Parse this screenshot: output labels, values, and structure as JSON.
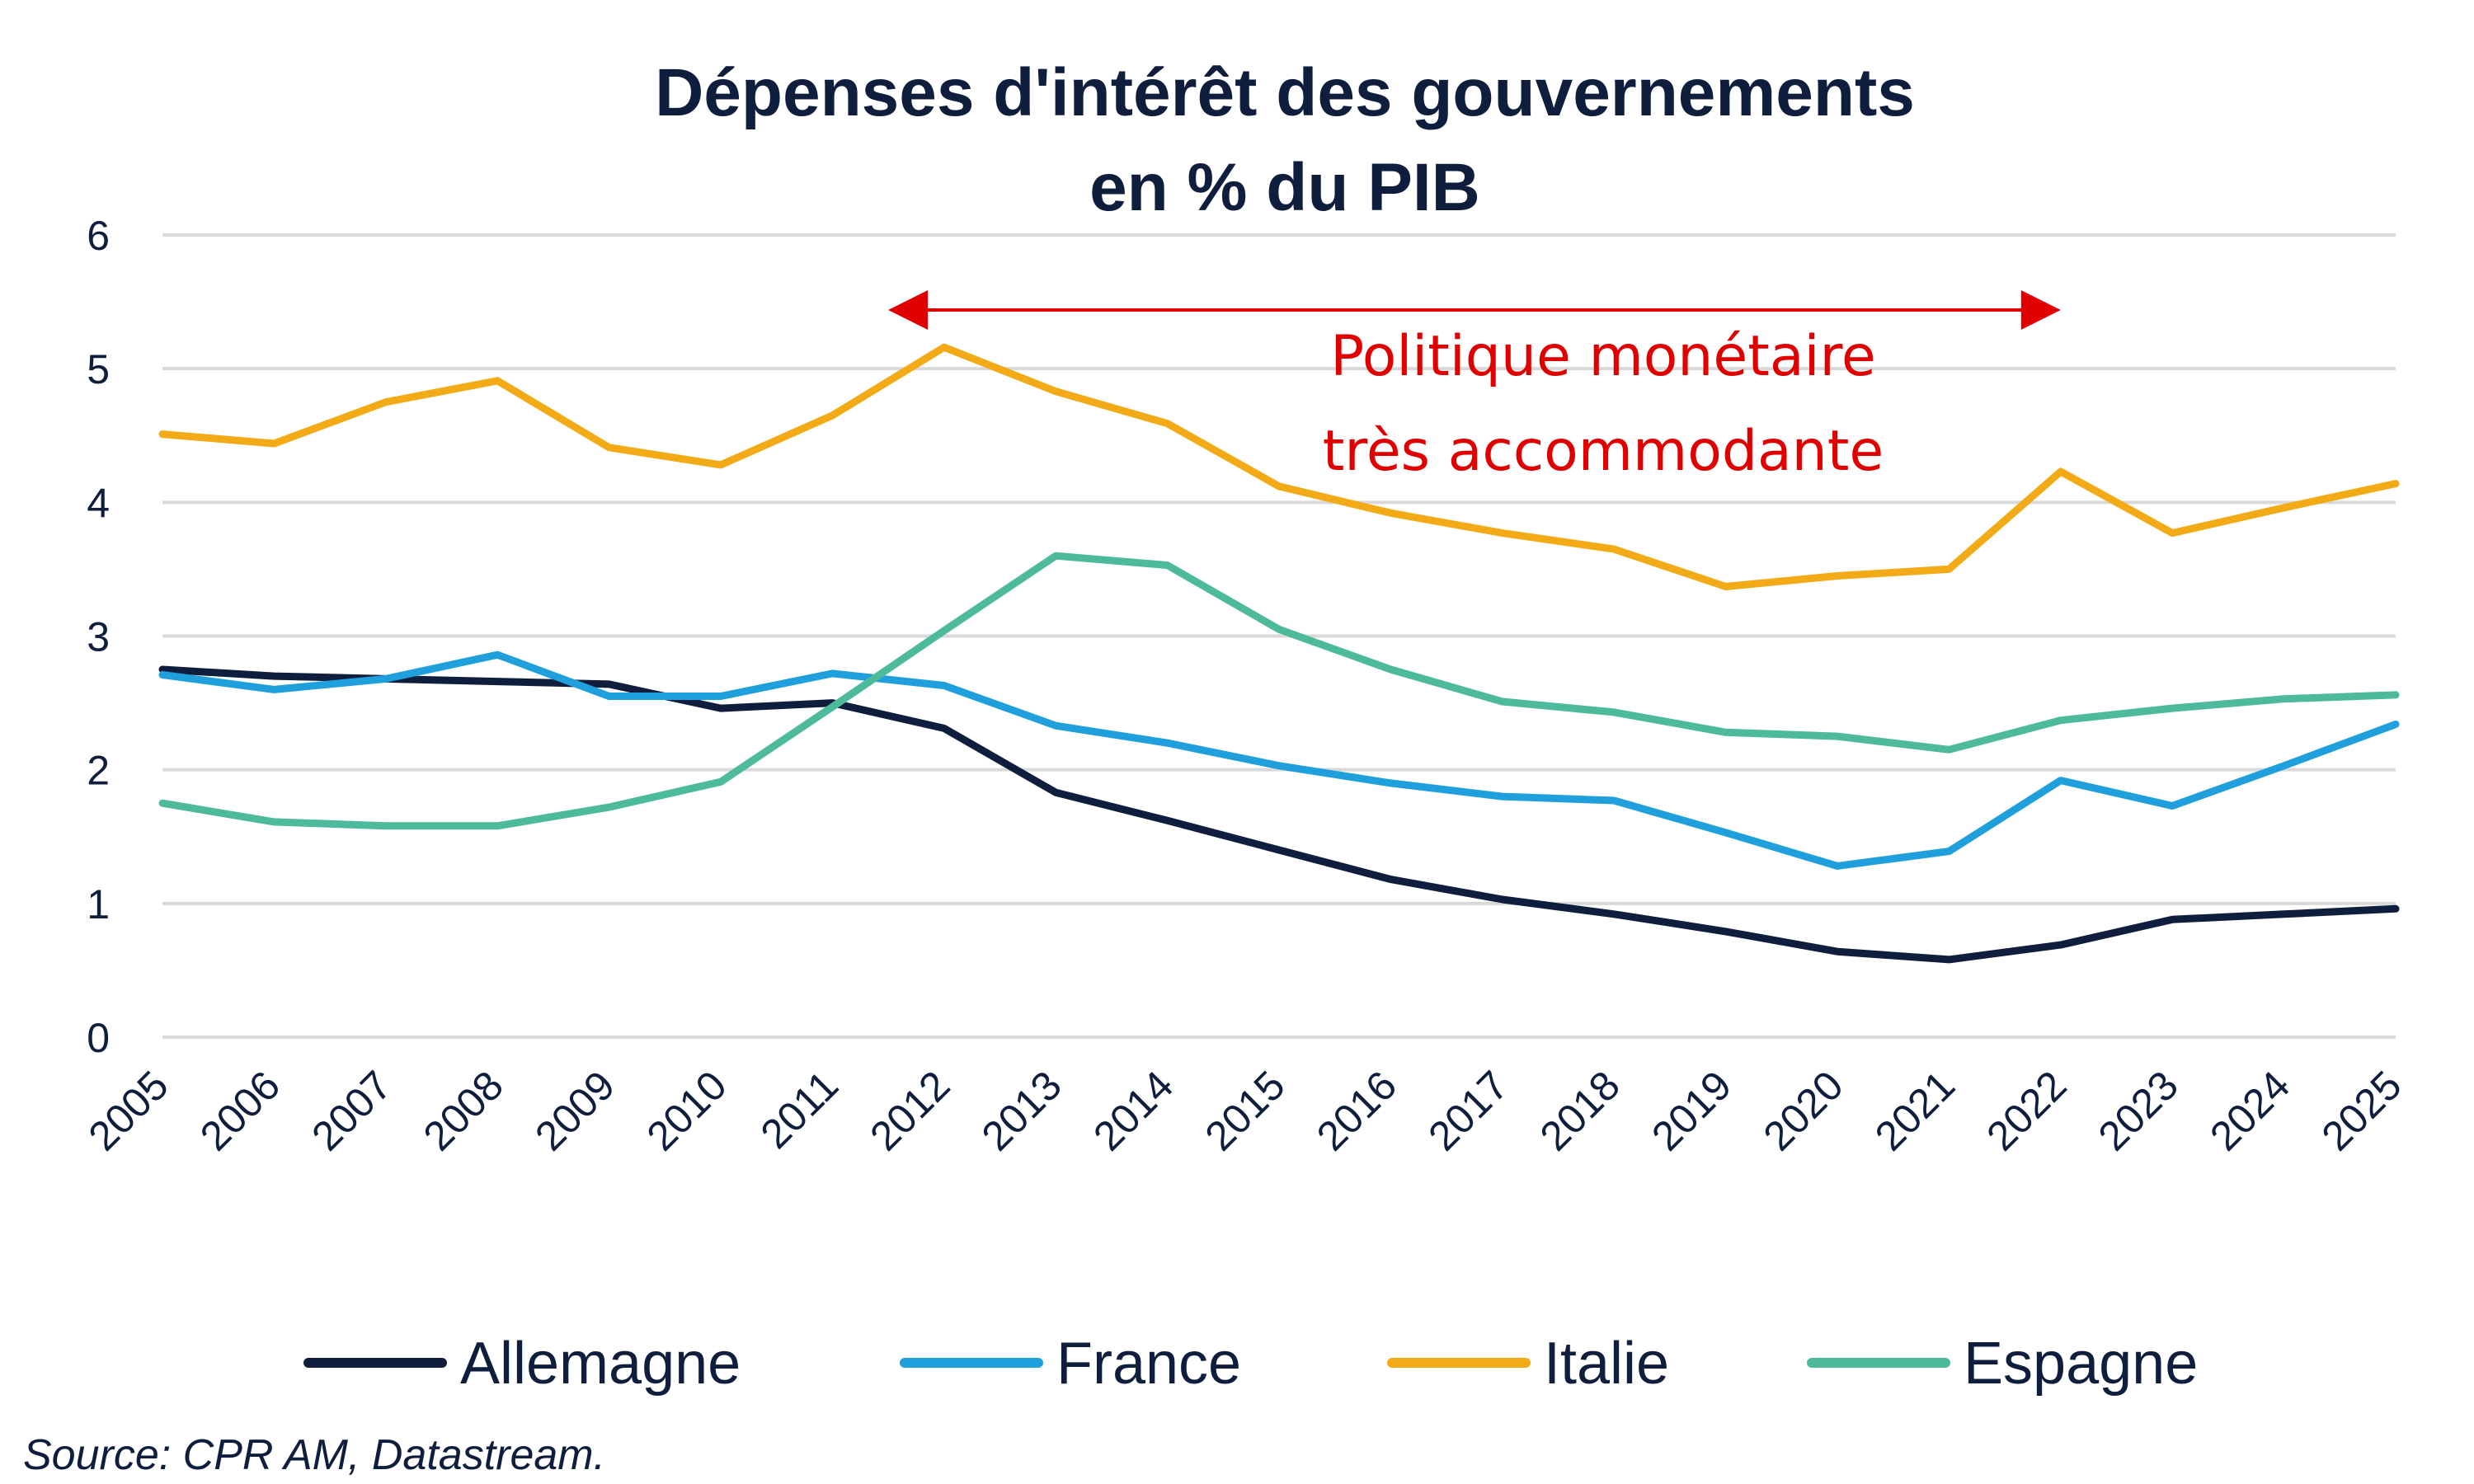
{
  "chart_data": {
    "type": "line",
    "title": "Dépenses d'intérêt des gouvernements",
    "subtitle": "en % du PIB",
    "x": [
      "2005",
      "2006",
      "2007",
      "2008",
      "2009",
      "2010",
      "2011",
      "2012",
      "2013",
      "2014",
      "2015",
      "2016",
      "2017",
      "2018",
      "2019",
      "2020",
      "2021",
      "2022",
      "2023",
      "2024",
      "2025"
    ],
    "ylim": [
      0,
      6
    ],
    "yticks": [
      "0",
      "1",
      "2",
      "3",
      "4",
      "5",
      "6"
    ],
    "grid": true,
    "legend_position": "bottom",
    "series": [
      {
        "name": "Allemagne",
        "color": "#0f1e3d",
        "values": [
          2.75,
          2.7,
          2.68,
          2.66,
          2.64,
          2.46,
          2.5,
          2.31,
          1.83,
          1.62,
          1.4,
          1.18,
          1.03,
          0.92,
          0.79,
          0.64,
          0.58,
          0.69,
          0.88,
          0.92,
          0.96
        ]
      },
      {
        "name": "France",
        "color": "#1f9fdb",
        "values": [
          2.71,
          2.6,
          2.68,
          2.86,
          2.55,
          2.55,
          2.72,
          2.63,
          2.33,
          2.2,
          2.03,
          1.9,
          1.8,
          1.77,
          1.53,
          1.28,
          1.39,
          1.92,
          1.73,
          2.03,
          2.34
        ]
      },
      {
        "name": "Italie",
        "color": "#f3aa17",
        "values": [
          4.51,
          4.44,
          4.75,
          4.91,
          4.41,
          4.28,
          4.65,
          5.16,
          4.83,
          4.59,
          4.12,
          3.92,
          3.77,
          3.65,
          3.37,
          3.45,
          3.5,
          4.23,
          3.77,
          3.96,
          4.14
        ]
      },
      {
        "name": "Espagne",
        "color": "#4dba9b",
        "values": [
          1.75,
          1.61,
          1.58,
          1.58,
          1.72,
          1.91,
          2.47,
          3.04,
          3.6,
          3.53,
          3.05,
          2.75,
          2.51,
          2.43,
          2.28,
          2.25,
          2.15,
          2.37,
          2.46,
          2.53,
          2.56
        ]
      }
    ],
    "annotation": {
      "lines": [
        "Politique monétaire",
        "très accommodante"
      ],
      "color": "#e00000",
      "arrow_from": "2011.5",
      "arrow_to": "2022"
    },
    "source": "Source: CPR AM, Datastream."
  }
}
